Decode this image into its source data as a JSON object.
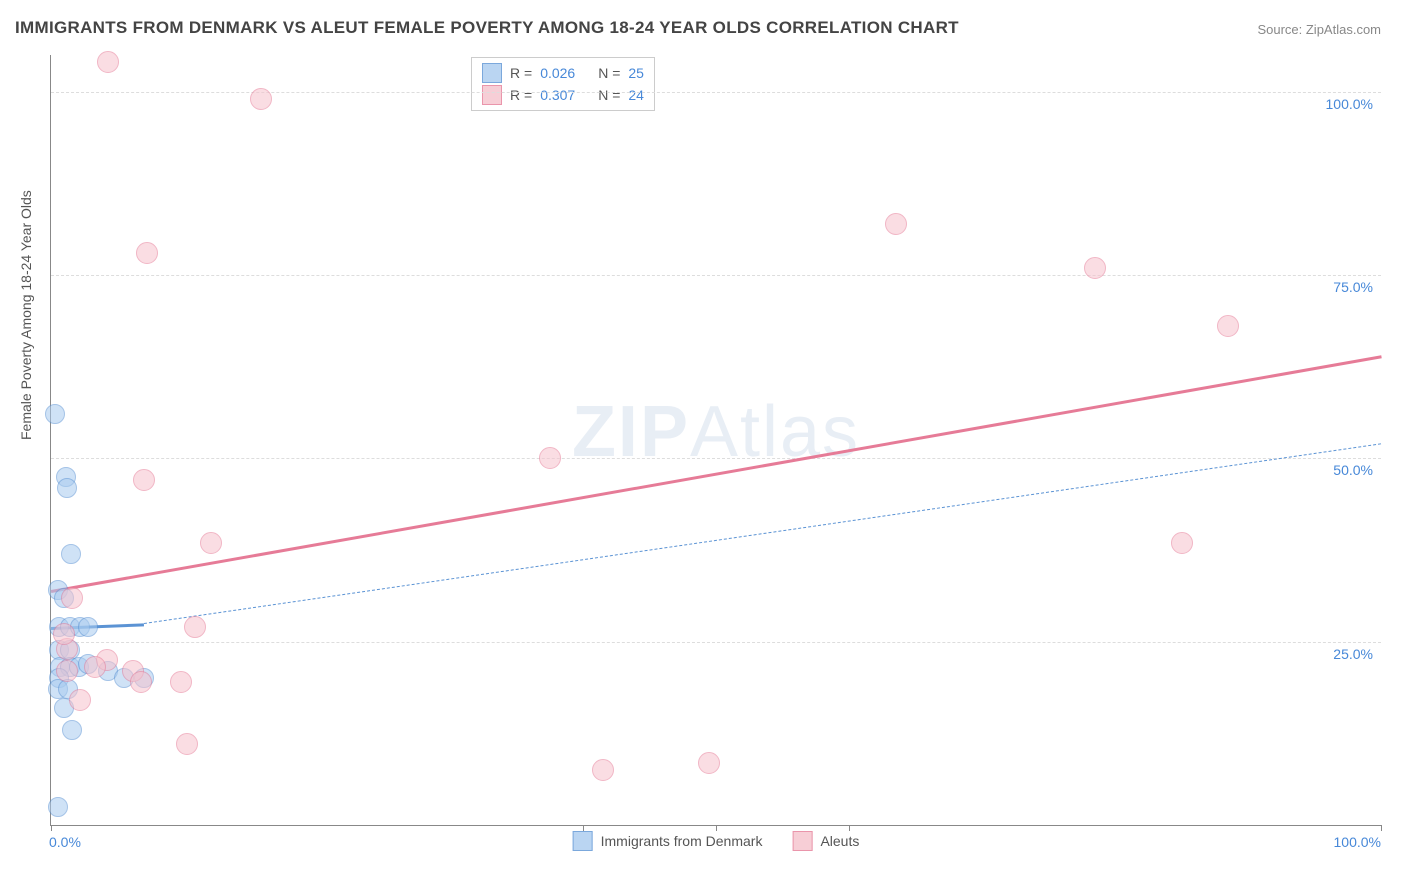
{
  "title": "IMMIGRANTS FROM DENMARK VS ALEUT FEMALE POVERTY AMONG 18-24 YEAR OLDS CORRELATION CHART",
  "source": "Source: ZipAtlas.com",
  "watermark_left": "ZIP",
  "watermark_right": "Atlas",
  "ylabel": "Female Poverty Among 18-24 Year Olds",
  "chart": {
    "type": "scatter",
    "xlim": [
      0,
      100
    ],
    "ylim": [
      0,
      105
    ],
    "x_ticks": [
      0,
      40,
      50,
      60,
      100
    ],
    "x_tick_labels": {
      "0": "0.0%",
      "100": "100.0%"
    },
    "y_gridlines": [
      25,
      50,
      75,
      100
    ],
    "y_tick_labels": {
      "25": "25.0%",
      "50": "50.0%",
      "75": "75.0%",
      "100": "100.0%"
    },
    "background_color": "#ffffff",
    "grid_color": "#dddddd",
    "axis_color": "#888888"
  },
  "series": [
    {
      "key": "denmark",
      "label": "Immigrants from Denmark",
      "fill_color": "#a9cbef",
      "stroke_color": "#5b93d4",
      "fill_opacity": 0.55,
      "marker_radius": 9,
      "r_value": "0.026",
      "n_value": "25",
      "trend": {
        "x1": 0,
        "y1": 27,
        "x2": 7,
        "y2": 27.5,
        "style": "solid",
        "width": 2.5
      },
      "trend_ext": {
        "x1": 7,
        "y1": 27.5,
        "x2": 100,
        "y2": 52,
        "style": "dashed",
        "width": 1.5
      },
      "points": [
        {
          "x": 0.3,
          "y": 56
        },
        {
          "x": 0.5,
          "y": 2.5
        },
        {
          "x": 1.1,
          "y": 47.5
        },
        {
          "x": 1.2,
          "y": 46
        },
        {
          "x": 1.5,
          "y": 37
        },
        {
          "x": 0.5,
          "y": 32
        },
        {
          "x": 1.0,
          "y": 31
        },
        {
          "x": 0.6,
          "y": 27
        },
        {
          "x": 1.4,
          "y": 27
        },
        {
          "x": 2.2,
          "y": 27
        },
        {
          "x": 2.8,
          "y": 27
        },
        {
          "x": 0.6,
          "y": 23.8
        },
        {
          "x": 1.4,
          "y": 23.8
        },
        {
          "x": 0.7,
          "y": 21.5
        },
        {
          "x": 1.4,
          "y": 21.5
        },
        {
          "x": 2.1,
          "y": 21.5
        },
        {
          "x": 0.6,
          "y": 20
        },
        {
          "x": 0.5,
          "y": 18.5
        },
        {
          "x": 1.3,
          "y": 18.5
        },
        {
          "x": 2.8,
          "y": 22
        },
        {
          "x": 1.0,
          "y": 16
        },
        {
          "x": 4.3,
          "y": 21
        },
        {
          "x": 1.6,
          "y": 13
        },
        {
          "x": 5.5,
          "y": 20
        },
        {
          "x": 7.0,
          "y": 20
        }
      ]
    },
    {
      "key": "aleuts",
      "label": "Aleuts",
      "fill_color": "#f6c2cd",
      "stroke_color": "#e67b97",
      "fill_opacity": 0.55,
      "marker_radius": 10,
      "r_value": "0.307",
      "n_value": "24",
      "trend": {
        "x1": 0,
        "y1": 32,
        "x2": 100,
        "y2": 64,
        "style": "solid",
        "width": 2.5
      },
      "points": [
        {
          "x": 4.3,
          "y": 104
        },
        {
          "x": 15.8,
          "y": 99
        },
        {
          "x": 7.2,
          "y": 78
        },
        {
          "x": 63.5,
          "y": 82
        },
        {
          "x": 78.5,
          "y": 76
        },
        {
          "x": 88.5,
          "y": 68
        },
        {
          "x": 37.5,
          "y": 50
        },
        {
          "x": 7.0,
          "y": 47
        },
        {
          "x": 12,
          "y": 38.5
        },
        {
          "x": 85,
          "y": 38.5
        },
        {
          "x": 1.6,
          "y": 31
        },
        {
          "x": 10.8,
          "y": 27
        },
        {
          "x": 1.2,
          "y": 24
        },
        {
          "x": 4.2,
          "y": 22.5
        },
        {
          "x": 1.2,
          "y": 21
        },
        {
          "x": 3.3,
          "y": 21.5
        },
        {
          "x": 6.2,
          "y": 21
        },
        {
          "x": 6.8,
          "y": 19.5
        },
        {
          "x": 9.8,
          "y": 19.5
        },
        {
          "x": 2.2,
          "y": 17
        },
        {
          "x": 10.2,
          "y": 11
        },
        {
          "x": 41.5,
          "y": 7.5
        },
        {
          "x": 49.5,
          "y": 8.5
        },
        {
          "x": 1.0,
          "y": 26
        }
      ]
    }
  ],
  "legend_top": {
    "r_label": "R =",
    "n_label": "N ="
  },
  "colors": {
    "tick_label": "#4788d8",
    "title": "#444444",
    "value_text": "#4788d8",
    "label_text": "#555555"
  }
}
